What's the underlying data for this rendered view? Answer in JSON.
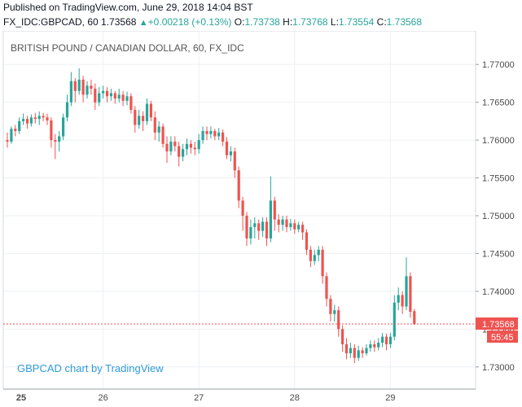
{
  "header": {
    "published": "Published on TradingView.com, June 29, 2018 14:04 BST",
    "symbol": "FX_IDC:GBPCAD, 60",
    "last": "1.73568",
    "change": "+0.00218 (+0.13%)",
    "o_label": "O:",
    "o_value": "1.73738",
    "h_label": "H:",
    "h_value": "1.73768",
    "l_label": "L:",
    "l_value": "1.73554",
    "c_label": "C:",
    "c_value": "1.73568"
  },
  "chart_title": "BRITISH POUND / CANADIAN DOLLAR, 60, FX_IDC",
  "watermark": "GBPCAD chart by TradingView",
  "colors": {
    "up": "#26a69a",
    "down": "#ef5350",
    "grid": "#eef0f3",
    "price_line": "#ef5350"
  },
  "chart_data": {
    "type": "candlestick",
    "ylim": [
      1.7275,
      1.7725
    ],
    "y_ticks": [
      "1.73000",
      "1.73500",
      "1.74000",
      "1.74500",
      "1.75000",
      "1.75500",
      "1.76000",
      "1.76500",
      "1.77000"
    ],
    "x_ticks": [
      {
        "label": "25",
        "bold": true,
        "index": 0
      },
      {
        "label": "26",
        "bold": false,
        "index": 24
      },
      {
        "label": "27",
        "bold": false,
        "index": 48
      },
      {
        "label": "28",
        "bold": false,
        "index": 72
      },
      {
        "label": "29",
        "bold": false,
        "index": 96
      }
    ],
    "last_price_label": "1.73568",
    "countdown_label": "55:45",
    "last_price": 1.73568,
    "candles": [
      [
        1.76,
        1.7598,
        1.761,
        1.759
      ],
      [
        1.7598,
        1.7615,
        1.7618,
        1.7595
      ],
      [
        1.7615,
        1.7612,
        1.762,
        1.7605
      ],
      [
        1.7612,
        1.7625,
        1.763,
        1.7608
      ],
      [
        1.7625,
        1.7628,
        1.7635,
        1.762
      ],
      [
        1.7628,
        1.7622,
        1.7632,
        1.7615
      ],
      [
        1.7622,
        1.763,
        1.7634,
        1.7618
      ],
      [
        1.763,
        1.7628,
        1.7636,
        1.7622
      ],
      [
        1.7628,
        1.7632,
        1.7638,
        1.762
      ],
      [
        1.7632,
        1.763,
        1.7636,
        1.7625
      ],
      [
        1.763,
        1.7626,
        1.7635,
        1.762
      ],
      [
        1.7626,
        1.76,
        1.763,
        1.759
      ],
      [
        1.76,
        1.7598,
        1.7608,
        1.7575
      ],
      [
        1.7598,
        1.7605,
        1.7612,
        1.7585
      ],
      [
        1.7605,
        1.763,
        1.7635,
        1.76
      ],
      [
        1.763,
        1.765,
        1.766,
        1.7625
      ],
      [
        1.765,
        1.7678,
        1.769,
        1.7645
      ],
      [
        1.7678,
        1.7665,
        1.7682,
        1.765
      ],
      [
        1.7665,
        1.768,
        1.7695,
        1.766
      ],
      [
        1.768,
        1.766,
        1.7685,
        1.765
      ],
      [
        1.766,
        1.7672,
        1.7678,
        1.7655
      ],
      [
        1.7672,
        1.7668,
        1.768,
        1.766
      ],
      [
        1.7668,
        1.765,
        1.7675,
        1.764
      ],
      [
        1.765,
        1.7662,
        1.767,
        1.7645
      ],
      [
        1.7662,
        1.7665,
        1.7672,
        1.7655
      ],
      [
        1.7665,
        1.7658,
        1.767,
        1.765
      ],
      [
        1.7658,
        1.7662,
        1.7668,
        1.7652
      ],
      [
        1.7662,
        1.7655,
        1.7665,
        1.7648
      ],
      [
        1.7655,
        1.766,
        1.7668,
        1.765
      ],
      [
        1.766,
        1.7652,
        1.7665,
        1.7645
      ],
      [
        1.7652,
        1.7658,
        1.7664,
        1.7646
      ],
      [
        1.7658,
        1.764,
        1.7662,
        1.7635
      ],
      [
        1.764,
        1.762,
        1.7645,
        1.761
      ],
      [
        1.762,
        1.7632,
        1.764,
        1.7615
      ],
      [
        1.7632,
        1.7625,
        1.7638,
        1.7612
      ],
      [
        1.7625,
        1.7648,
        1.7655,
        1.762
      ],
      [
        1.7648,
        1.763,
        1.7652,
        1.7625
      ],
      [
        1.763,
        1.761,
        1.7638,
        1.76
      ],
      [
        1.761,
        1.7618,
        1.7625,
        1.7598
      ],
      [
        1.7618,
        1.7595,
        1.7622,
        1.759
      ],
      [
        1.7595,
        1.7585,
        1.7605,
        1.757
      ],
      [
        1.7585,
        1.7598,
        1.7605,
        1.758
      ],
      [
        1.7598,
        1.7592,
        1.7605,
        1.7585
      ],
      [
        1.7592,
        1.7578,
        1.7598,
        1.7565
      ],
      [
        1.7578,
        1.7588,
        1.7595,
        1.7572
      ],
      [
        1.7588,
        1.7595,
        1.7602,
        1.758
      ],
      [
        1.7595,
        1.759,
        1.76,
        1.7582
      ],
      [
        1.759,
        1.7588,
        1.7598,
        1.758
      ],
      [
        1.7588,
        1.76,
        1.7608,
        1.7582
      ],
      [
        1.76,
        1.7612,
        1.7618,
        1.7595
      ],
      [
        1.7612,
        1.7608,
        1.7618,
        1.76
      ],
      [
        1.7608,
        1.7612,
        1.7618,
        1.7602
      ],
      [
        1.7612,
        1.7605,
        1.7615,
        1.76
      ],
      [
        1.7605,
        1.761,
        1.7616,
        1.76
      ],
      [
        1.761,
        1.7598,
        1.7614,
        1.7592
      ],
      [
        1.7598,
        1.758,
        1.7604,
        1.7575
      ],
      [
        1.758,
        1.7585,
        1.7592,
        1.7572
      ],
      [
        1.7585,
        1.756,
        1.759,
        1.755
      ],
      [
        1.756,
        1.752,
        1.7565,
        1.751
      ],
      [
        1.752,
        1.75,
        1.7525,
        1.748
      ],
      [
        1.75,
        1.747,
        1.7505,
        1.746
      ],
      [
        1.747,
        1.7485,
        1.7495,
        1.7462
      ],
      [
        1.7485,
        1.749,
        1.7498,
        1.747
      ],
      [
        1.749,
        1.748,
        1.7495,
        1.7468
      ],
      [
        1.748,
        1.7492,
        1.7498,
        1.7472
      ],
      [
        1.7492,
        1.747,
        1.7498,
        1.746
      ],
      [
        1.747,
        1.752,
        1.7552,
        1.7465
      ],
      [
        1.752,
        1.7495,
        1.7525,
        1.748
      ],
      [
        1.7495,
        1.7488,
        1.7502,
        1.7478
      ],
      [
        1.7488,
        1.7495,
        1.75,
        1.748
      ],
      [
        1.7495,
        1.7485,
        1.75,
        1.7478
      ],
      [
        1.7485,
        1.749,
        1.7496,
        1.748
      ],
      [
        1.749,
        1.7482,
        1.7495,
        1.7476
      ],
      [
        1.7482,
        1.7488,
        1.7492,
        1.7478
      ],
      [
        1.7488,
        1.7478,
        1.7492,
        1.7468
      ],
      [
        1.7478,
        1.7455,
        1.7482,
        1.7448
      ],
      [
        1.7455,
        1.744,
        1.746,
        1.7432
      ],
      [
        1.744,
        1.7448,
        1.7455,
        1.7435
      ],
      [
        1.7448,
        1.7455,
        1.746,
        1.744
      ],
      [
        1.7455,
        1.742,
        1.746,
        1.741
      ],
      [
        1.742,
        1.739,
        1.7425,
        1.738
      ],
      [
        1.739,
        1.737,
        1.7395,
        1.736
      ],
      [
        1.737,
        1.7375,
        1.7382,
        1.736
      ],
      [
        1.7375,
        1.735,
        1.738,
        1.734
      ],
      [
        1.735,
        1.733,
        1.7355,
        1.732
      ],
      [
        1.733,
        1.7318,
        1.7338,
        1.731
      ],
      [
        1.7318,
        1.7325,
        1.7332,
        1.7312
      ],
      [
        1.7325,
        1.7312,
        1.733,
        1.7305
      ],
      [
        1.7312,
        1.7322,
        1.7328,
        1.7308
      ],
      [
        1.7322,
        1.7318,
        1.7326,
        1.7312
      ],
      [
        1.7318,
        1.7325,
        1.733,
        1.7315
      ],
      [
        1.7325,
        1.733,
        1.7335,
        1.732
      ],
      [
        1.733,
        1.7326,
        1.7335,
        1.732
      ],
      [
        1.7326,
        1.7332,
        1.7338,
        1.7322
      ],
      [
        1.7332,
        1.734,
        1.7345,
        1.7326
      ],
      [
        1.734,
        1.733,
        1.7344,
        1.7322
      ],
      [
        1.733,
        1.734,
        1.7345,
        1.7325
      ],
      [
        1.734,
        1.7385,
        1.7395,
        1.7335
      ],
      [
        1.7385,
        1.7395,
        1.7405,
        1.7375
      ],
      [
        1.7395,
        1.738,
        1.74,
        1.737
      ],
      [
        1.738,
        1.742,
        1.7445,
        1.7375
      ],
      [
        1.742,
        1.7373,
        1.7425,
        1.7365
      ],
      [
        1.73738,
        1.73568,
        1.73768,
        1.73554
      ]
    ]
  }
}
